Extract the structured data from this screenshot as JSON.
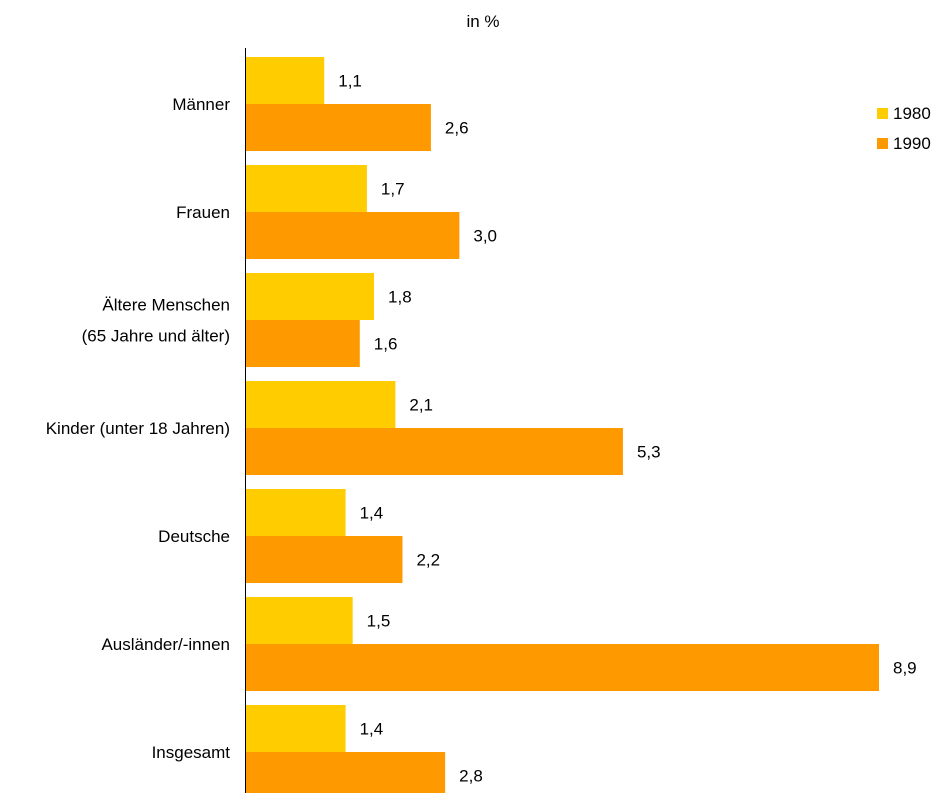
{
  "chart_data": {
    "type": "bar",
    "orientation": "horizontal",
    "title": "in %",
    "categories": [
      [
        "Männer"
      ],
      [
        "Frauen"
      ],
      [
        "Ältere Menschen",
        "(65 Jahre und älter)"
      ],
      [
        "Kinder (unter 18 Jahren)"
      ],
      [
        "Deutsche"
      ],
      [
        "Ausländer/-innen"
      ],
      [
        "Insgesamt"
      ]
    ],
    "series": [
      {
        "name": "1980",
        "values": [
          1.1,
          1.7,
          1.8,
          2.1,
          1.4,
          1.5,
          1.4
        ],
        "labels": [
          "1,1",
          "1,7",
          "1,8",
          "2,1",
          "1,4",
          "1,5",
          "1,4"
        ],
        "color": "#FFCC00"
      },
      {
        "name": "1990",
        "values": [
          2.6,
          3.0,
          1.6,
          5.3,
          2.2,
          8.9,
          2.8
        ],
        "labels": [
          "2,6",
          "3,0",
          "1,6",
          "5,3",
          "2,2",
          "8,9",
          "2,8"
        ],
        "color": "#FF9900"
      }
    ],
    "xlim": [
      0,
      8.9
    ],
    "grid": false,
    "legend_position": "top-right"
  }
}
